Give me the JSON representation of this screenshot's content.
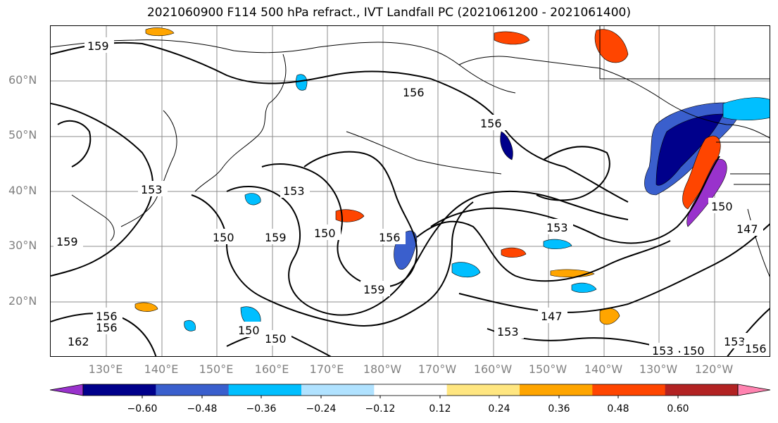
{
  "title": "2021060900 F114 500 hPa refract., IVT Landfall PC (2021061200 - 2021061400)",
  "lat_labels": [
    "60°N",
    "50°N",
    "40°N",
    "30°N",
    "20°N"
  ],
  "lon_labels": [
    "130°E",
    "140°E",
    "150°E",
    "160°E",
    "170°E",
    "180°W",
    "170°W",
    "160°W",
    "150°W",
    "140°W",
    "130°W",
    "120°W"
  ],
  "colorbar": {
    "ticks": [
      "−0.60",
      "−0.48",
      "−0.36",
      "−0.24",
      "−0.12",
      "0.12",
      "0.24",
      "0.36",
      "0.48",
      "0.60"
    ],
    "colors": [
      "#9932cc",
      "#00008b",
      "#3a5fcd",
      "#00bfff",
      "#b0e2ff",
      "#ffffff",
      "#ffe680",
      "#ffa500",
      "#ff4500",
      "#b22222",
      "#ff83b0"
    ]
  },
  "contour_labels": [
    "159",
    "156",
    "156",
    "153",
    "153",
    "159",
    "150",
    "150",
    "159",
    "156",
    "153",
    "159",
    "156",
    "150",
    "150",
    "147",
    "153",
    "153",
    "150",
    "153",
    "156",
    "150",
    "147",
    "162",
    "156"
  ]
}
